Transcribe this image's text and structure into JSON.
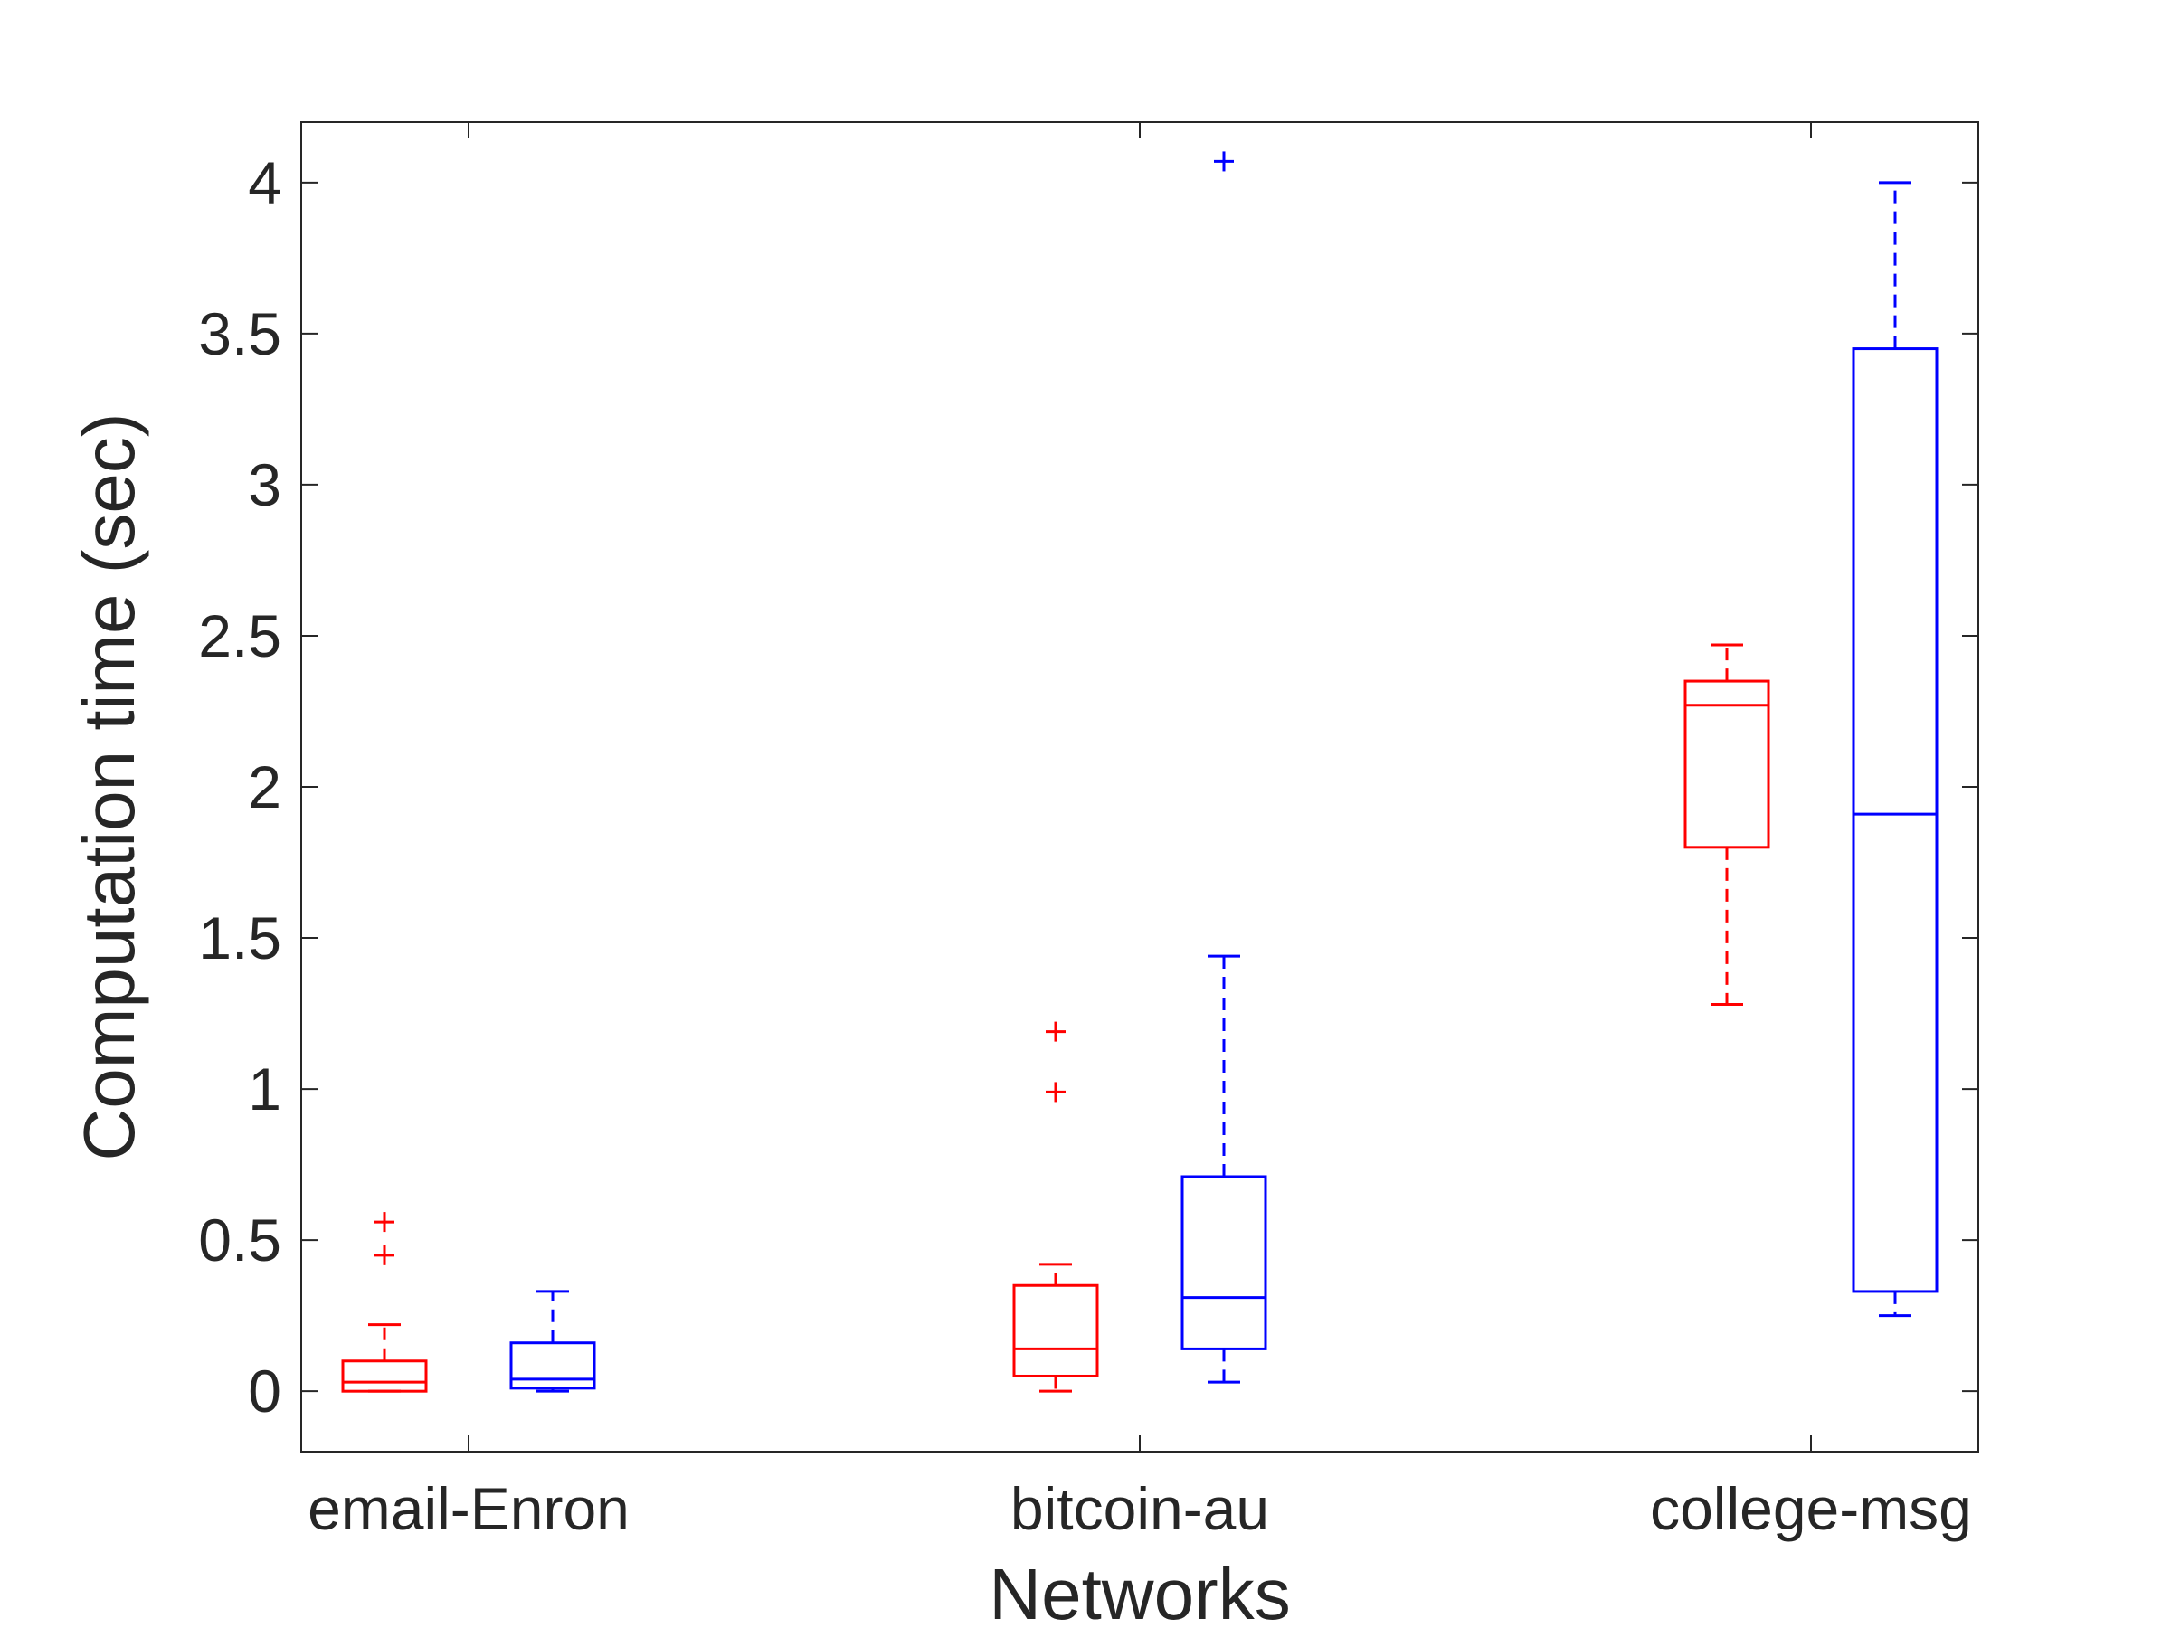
{
  "chart_data": {
    "type": "boxplot",
    "title": "",
    "xlabel": "Networks",
    "ylabel": "Computation time (sec)",
    "categories": [
      "email-Enron",
      "bitcoin-au",
      "college-msg"
    ],
    "ylim": [
      -0.2,
      4.2
    ],
    "yticks": [
      "0",
      "0.5",
      "1",
      "1.5",
      "2",
      "2.5",
      "3",
      "3.5",
      "4"
    ],
    "grid": false,
    "legend": "none",
    "series": [
      {
        "color": "#ff0000",
        "boxes": [
          {
            "whisker_low": 0.0,
            "q1": 0.0,
            "median": 0.03,
            "q3": 0.1,
            "whisker_high": 0.22,
            "outliers": [
              0.56,
              0.45
            ]
          },
          {
            "whisker_low": 0.0,
            "q1": 0.05,
            "median": 0.14,
            "q3": 0.35,
            "whisker_high": 0.42,
            "outliers": [
              1.19,
              0.99
            ]
          },
          {
            "whisker_low": 1.28,
            "q1": 1.8,
            "median": 2.27,
            "q3": 2.35,
            "whisker_high": 2.47,
            "outliers": []
          }
        ]
      },
      {
        "color": "#0000ff",
        "boxes": [
          {
            "whisker_low": 0.0,
            "q1": 0.01,
            "median": 0.04,
            "q3": 0.16,
            "whisker_high": 0.33,
            "outliers": []
          },
          {
            "whisker_low": 0.03,
            "q1": 0.14,
            "median": 0.31,
            "q3": 0.71,
            "whisker_high": 1.44,
            "outliers": [
              4.07
            ]
          },
          {
            "whisker_low": 0.25,
            "q1": 0.33,
            "median": 1.91,
            "q3": 3.45,
            "whisker_high": 4.0,
            "outliers": []
          }
        ]
      }
    ]
  }
}
